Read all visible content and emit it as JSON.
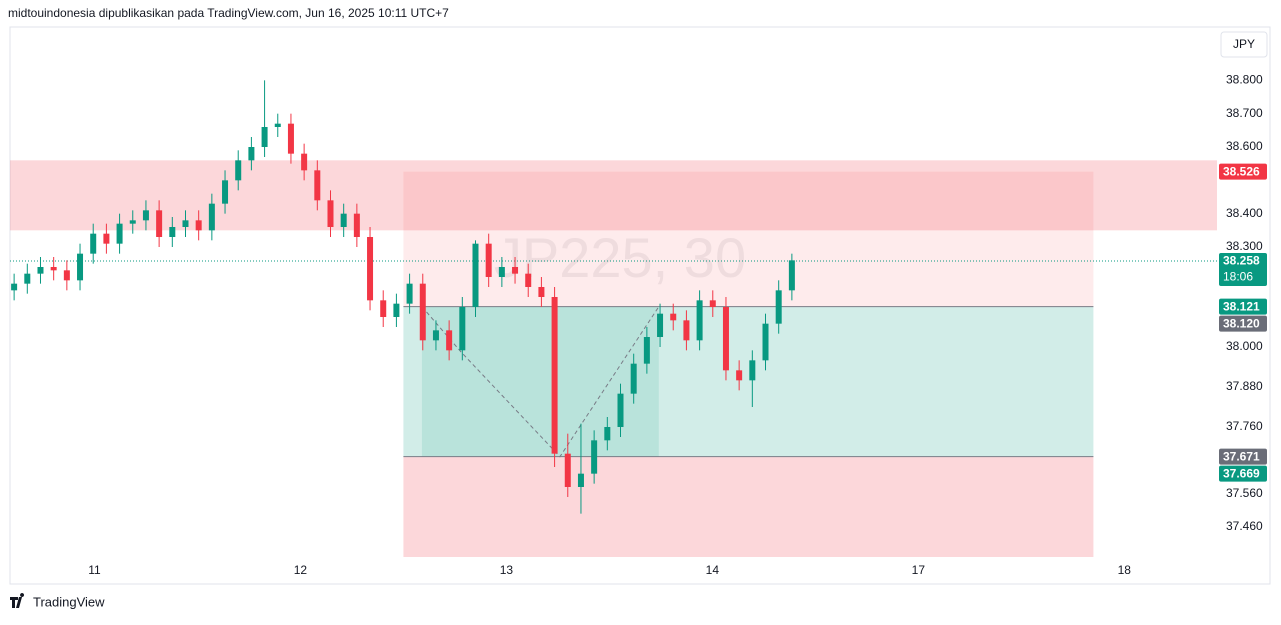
{
  "header": {
    "text": "midtouindonesia dipublikasikan pada TradingView.com, Jun 16, 2025 10:11 UTC+7"
  },
  "footer": {
    "brand": "TradingView"
  },
  "chart_data": {
    "type": "candlestick",
    "currency": "JPY",
    "watermark": "JP225, 30",
    "up_color": "#089981",
    "down_color": "#f23645",
    "xlim": [
      10.59,
      16.45
    ],
    "ylim": [
      37.37,
      38.96
    ],
    "xticks": [
      11,
      12,
      13,
      14,
      {
        "value": 15,
        "label": "17"
      },
      {
        "value": 16,
        "label": "18"
      }
    ],
    "yticks": [
      {
        "value": 38.8,
        "label": "38.800"
      },
      {
        "value": 38.7,
        "label": "38.700"
      },
      {
        "value": 38.6,
        "label": "38.600"
      },
      {
        "value": 38.4,
        "label": "38.400"
      },
      {
        "value": 38.3,
        "label": "38.300"
      },
      {
        "value": 38.0,
        "label": "38.000"
      },
      {
        "value": 37.88,
        "label": "37.880"
      },
      {
        "value": 37.76,
        "label": "37.760"
      },
      {
        "value": 37.56,
        "label": "37.560"
      },
      {
        "value": 37.46,
        "label": "37.460"
      }
    ],
    "x": [
      10.61,
      10.674,
      10.738,
      10.802,
      10.866,
      10.93,
      10.994,
      11.058,
      11.122,
      11.186,
      11.25,
      11.314,
      11.378,
      11.442,
      11.506,
      11.57,
      11.634,
      11.698,
      11.762,
      11.826,
      11.89,
      11.954,
      12.018,
      12.082,
      12.146,
      12.21,
      12.274,
      12.338,
      12.402,
      12.466,
      12.53,
      12.594,
      12.658,
      12.722,
      12.786,
      12.85,
      12.914,
      12.978,
      13.042,
      13.106,
      13.17,
      13.234,
      13.298,
      13.362,
      13.426,
      13.49,
      13.554,
      13.618,
      13.682,
      13.746,
      13.81,
      13.874,
      13.938,
      14.002,
      14.066,
      14.13,
      14.194,
      14.258,
      14.322,
      14.386
    ],
    "open": [
      38.17,
      38.19,
      38.22,
      38.24,
      38.23,
      38.2,
      38.28,
      38.34,
      38.31,
      38.37,
      38.38,
      38.41,
      38.33,
      38.36,
      38.38,
      38.35,
      38.43,
      38.5,
      38.56,
      38.6,
      38.66,
      38.67,
      38.58,
      38.53,
      38.44,
      38.36,
      38.4,
      38.33,
      38.14,
      38.09,
      38.13,
      38.19,
      38.02,
      38.05,
      37.99,
      38.12,
      38.31,
      38.21,
      38.24,
      38.22,
      38.18,
      38.15,
      37.68,
      37.58,
      37.62,
      37.72,
      37.76,
      37.86,
      37.95,
      38.03,
      38.1,
      38.08,
      38.02,
      38.14,
      38.12,
      37.93,
      37.9,
      37.96,
      38.07,
      38.17
    ],
    "high": [
      38.22,
      38.25,
      38.27,
      38.27,
      38.26,
      38.31,
      38.37,
      38.37,
      38.4,
      38.41,
      38.44,
      38.44,
      38.39,
      38.41,
      38.41,
      38.46,
      38.53,
      38.59,
      38.63,
      38.8,
      38.7,
      38.7,
      38.61,
      38.56,
      38.47,
      38.43,
      38.43,
      38.36,
      38.17,
      38.16,
      38.22,
      38.22,
      38.08,
      38.08,
      38.15,
      38.32,
      38.34,
      38.27,
      38.27,
      38.25,
      38.21,
      38.18,
      37.74,
      37.77,
      37.75,
      37.79,
      37.89,
      37.98,
      38.06,
      38.13,
      38.13,
      38.11,
      38.17,
      38.17,
      38.15,
      37.96,
      37.99,
      38.1,
      38.2,
      38.28
    ],
    "low": [
      38.14,
      38.16,
      38.19,
      38.2,
      38.17,
      38.17,
      38.25,
      38.28,
      38.28,
      38.34,
      38.35,
      38.3,
      38.3,
      38.33,
      38.32,
      38.32,
      38.4,
      38.47,
      38.53,
      38.57,
      38.63,
      38.55,
      38.5,
      38.41,
      38.33,
      38.33,
      38.3,
      38.11,
      38.06,
      38.06,
      38.1,
      37.99,
      37.99,
      37.96,
      37.96,
      38.09,
      38.18,
      38.18,
      38.19,
      38.15,
      38.12,
      37.64,
      37.55,
      37.5,
      37.59,
      37.69,
      37.73,
      37.83,
      37.92,
      38.0,
      38.05,
      37.99,
      37.99,
      38.09,
      37.9,
      37.87,
      37.82,
      37.93,
      38.04,
      38.14
    ],
    "close": [
      38.19,
      38.22,
      38.24,
      38.23,
      38.2,
      38.28,
      38.34,
      38.31,
      38.37,
      38.38,
      38.41,
      38.33,
      38.36,
      38.38,
      38.35,
      38.43,
      38.5,
      38.56,
      38.6,
      38.66,
      38.67,
      38.58,
      38.53,
      38.44,
      38.36,
      38.4,
      38.33,
      38.14,
      38.09,
      38.13,
      38.19,
      38.02,
      38.05,
      37.99,
      38.12,
      38.31,
      38.21,
      38.24,
      38.22,
      38.18,
      38.15,
      37.68,
      37.58,
      37.62,
      37.72,
      37.76,
      37.86,
      37.95,
      38.03,
      38.1,
      38.08,
      38.02,
      38.14,
      38.12,
      37.93,
      37.9,
      37.96,
      38.07,
      38.17,
      38.26
    ],
    "zones": [
      {
        "x": [
          10.59,
          16.45
        ],
        "y": [
          38.35,
          38.56
        ],
        "color": "rgba(242,54,69,0.2)"
      },
      {
        "x": [
          12.5,
          15.85
        ],
        "y": [
          38.121,
          38.526
        ],
        "color": "rgba(242,54,69,0.1)"
      },
      {
        "x": [
          12.5,
          15.85
        ],
        "y": [
          37.671,
          38.121
        ],
        "color": "rgba(8,153,129,0.18)"
      },
      {
        "x": [
          12.59,
          13.74
        ],
        "y": [
          37.671,
          38.121
        ],
        "color": "rgba(8,153,129,0.12)"
      },
      {
        "x": [
          12.5,
          15.85
        ],
        "y": [
          37.37,
          37.671
        ],
        "color": "rgba(242,54,69,0.2)"
      }
    ],
    "path": {
      "x": [
        12.59,
        12.78,
        13.26,
        13.74
      ],
      "y": [
        38.121,
        37.985,
        37.671,
        38.121
      ]
    },
    "last_price": {
      "value": 38.258,
      "label": "38.258",
      "countdown": "18:06",
      "color": "#089981"
    },
    "price_labels": [
      {
        "value": 38.526,
        "label": "38.526",
        "color": "#f23645"
      },
      {
        "value": 38.121,
        "label": "38.121",
        "color": "#089981"
      },
      {
        "value": 38.12,
        "label": "38.120",
        "color": "#6a6d78"
      },
      {
        "value": 37.671,
        "label": "37.671",
        "color": "#6a6d78"
      },
      {
        "value": 37.669,
        "label": "37.669",
        "color": "#089981"
      }
    ]
  }
}
